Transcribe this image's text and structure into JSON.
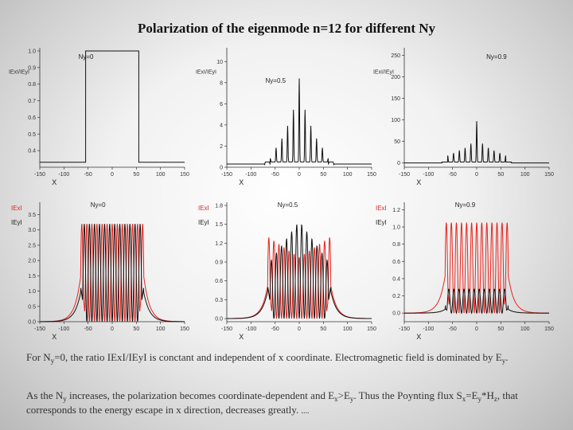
{
  "title": "Polarization of the eigenmode n=12 for different Ny",
  "colors": {
    "red": "#e8231b",
    "black": "#111111"
  },
  "chart_data": [
    {
      "type": "line",
      "label": "Ny=0",
      "xlim": [
        -150,
        150
      ],
      "ylim": [
        0.3,
        1.0
      ],
      "xticks": [
        "-150",
        "-100",
        "-50",
        "0",
        "50",
        "100",
        "150"
      ],
      "yticks": [
        "0.4",
        "0.5",
        "0.6",
        "0.7",
        "0.8",
        "0.9",
        "1.0"
      ],
      "xlabel": "X",
      "ylabel": "IExI/IEyI",
      "series": [
        {
          "x": [
            -150,
            -55,
            -55,
            55,
            55,
            150
          ],
          "y": [
            0.33,
            0.33,
            1.0,
            1.0,
            0.33,
            0.33
          ]
        }
      ]
    },
    {
      "type": "line",
      "label": "Ny=0.5",
      "xlim": [
        -150,
        150
      ],
      "ylim": [
        0,
        11
      ],
      "xticks": [
        "-150",
        "-100",
        "-50",
        "0",
        "50",
        "100",
        "150"
      ],
      "yticks": [
        "0",
        "2",
        "4",
        "6",
        "8",
        "10"
      ],
      "xlabel": "X",
      "ylabel": "IExI/IEyI",
      "envelope": {
        "x": [
          -60,
          -50,
          -40,
          -30,
          -20,
          -10,
          0,
          10,
          20,
          30,
          40,
          50,
          60
        ],
        "peak": [
          0.6,
          1.5,
          2.2,
          3.0,
          4.2,
          5.5,
          8.2,
          5.5,
          4.2,
          3.0,
          2.2,
          1.5,
          0.6
        ]
      },
      "baseline": 0.3
    },
    {
      "type": "line",
      "label": "Ny=0.9",
      "xlim": [
        -150,
        150
      ],
      "ylim": [
        -10,
        260
      ],
      "xticks": [
        "-150",
        "-100",
        "-50",
        "0",
        "50",
        "100",
        "150"
      ],
      "yticks": [
        "0",
        "50",
        "100",
        "150",
        "200",
        "250"
      ],
      "xlabel": "X",
      "ylabel": "IExI/IEyI",
      "envelope": {
        "x": [
          -60,
          -50,
          -40,
          -30,
          -20,
          -10,
          0,
          10,
          20,
          30,
          40,
          50,
          60
        ],
        "peak": [
          15,
          20,
          25,
          30,
          35,
          45,
          95,
          45,
          35,
          30,
          25,
          20,
          15
        ]
      },
      "baseline": 0
    },
    {
      "type": "line",
      "label": "Ny=0",
      "xlim": [
        -150,
        150
      ],
      "ylim": [
        0,
        3.8
      ],
      "xticks": [
        "-150",
        "-100",
        "-50",
        "0",
        "50",
        "100",
        "150"
      ],
      "yticks": [
        "0.0",
        "0.5",
        "1.0",
        "1.5",
        "2.0",
        "2.5",
        "3.0",
        "3.5"
      ],
      "xlabel": "X",
      "series": [
        {
          "name": "IExI",
          "color": "#e8231b",
          "oscillations": 13,
          "peak": 3.2,
          "edge_rise": 1.7
        },
        {
          "name": "IEyI",
          "color": "#111111",
          "oscillations": 13,
          "peak": 3.2,
          "edge_rise": 1.1
        }
      ]
    },
    {
      "type": "line",
      "label": "Ny=0.5",
      "xlim": [
        -150,
        150
      ],
      "ylim": [
        -0.05,
        1.8
      ],
      "xticks": [
        "-150",
        "-100",
        "-50",
        "0",
        "50",
        "100",
        "150"
      ],
      "yticks": [
        "0.0",
        "0.3",
        "0.6",
        "0.9",
        "1.2",
        "1.5",
        "1.8"
      ],
      "xlabel": "X",
      "series": [
        {
          "name": "IExI",
          "color": "#e8231b",
          "oscillations": 13,
          "peak": 1.3,
          "edge_rise": 0.6
        },
        {
          "name": "IEyI",
          "color": "#111111",
          "oscillations": 13,
          "peak": 1.55,
          "edge_rise": 0.5
        }
      ]
    },
    {
      "type": "line",
      "label": "Ny=0.9",
      "xlim": [
        -150,
        150
      ],
      "ylim": [
        -0.1,
        1.25
      ],
      "xticks": [
        "-150",
        "-100",
        "-50",
        "0",
        "50",
        "100",
        "150"
      ],
      "yticks": [
        "0.0",
        "0.2",
        "0.4",
        "0.6",
        "0.8",
        "1.0",
        "1.2"
      ],
      "xlabel": "X",
      "series": [
        {
          "name": "IExI",
          "color": "#e8231b",
          "oscillations": 13,
          "peak": 1.05,
          "edge_rise": 0.5
        },
        {
          "name": "IEyI",
          "color": "#111111",
          "oscillations": 13,
          "peak": 0.28,
          "edge_rise": 0.05
        }
      ]
    }
  ],
  "text": {
    "p1_a": "For N",
    "p1_a_sub": "y",
    "p1_b": "=0, the ratio IExI/IEyI is conctant and independent of x coordinate. Electromagnetic field is dominated by E",
    "p1_b_sub": "y",
    "p1_c": ".",
    "p2_a": "As the N",
    "p2_a_sub": "y",
    "p2_b": " increases, the polarization becomes coordinate-dependent and E",
    "p2_b_sub": "x",
    "p2_c": ">E",
    "p2_c_sub": "y",
    "p2_d": ". Thus the Poynting flux S",
    "p2_d_sub": "x",
    "p2_e": "=E",
    "p2_e_sub": "y",
    "p2_f": "*H",
    "p2_f_sub": "z",
    "p2_g": ", that corresponds to the energy escape in x direction, decreases greatly.",
    "p2_h": "...."
  }
}
